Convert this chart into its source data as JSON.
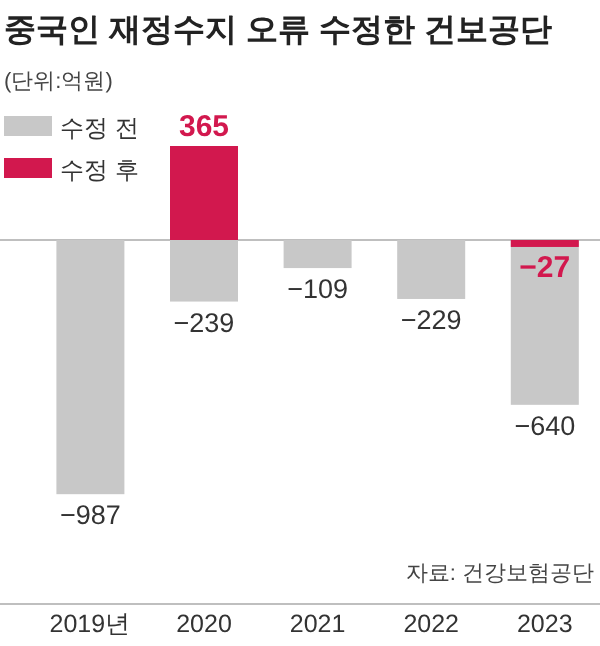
{
  "chart_data": {
    "type": "bar",
    "title": "중국인 재정수지 오류 수정한 건보공단",
    "subtitle": "(단위:억원)",
    "categories": [
      "2019년",
      "2020",
      "2021",
      "2022",
      "2023"
    ],
    "series": [
      {
        "name": "수정 전",
        "color": "#c8c8c8",
        "values": [
          -987,
          -239,
          -109,
          -229,
          -640
        ]
      },
      {
        "name": "수정 후",
        "color": "#d2184e",
        "values": [
          null,
          365,
          null,
          null,
          -27
        ]
      }
    ],
    "data_labels": true,
    "legend": "top left",
    "annotations": [
      "자료: 건강보험공단"
    ]
  }
}
